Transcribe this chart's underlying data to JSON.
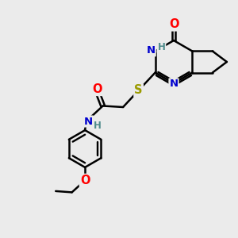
{
  "bg_color": "#ebebeb",
  "bond_color": "#000000",
  "bond_width": 1.8,
  "atom_colors": {
    "C": "#000000",
    "N": "#0000cd",
    "O": "#ff0000",
    "S": "#9b9b00",
    "H": "#4e8b8b"
  },
  "font_size": 9.5
}
